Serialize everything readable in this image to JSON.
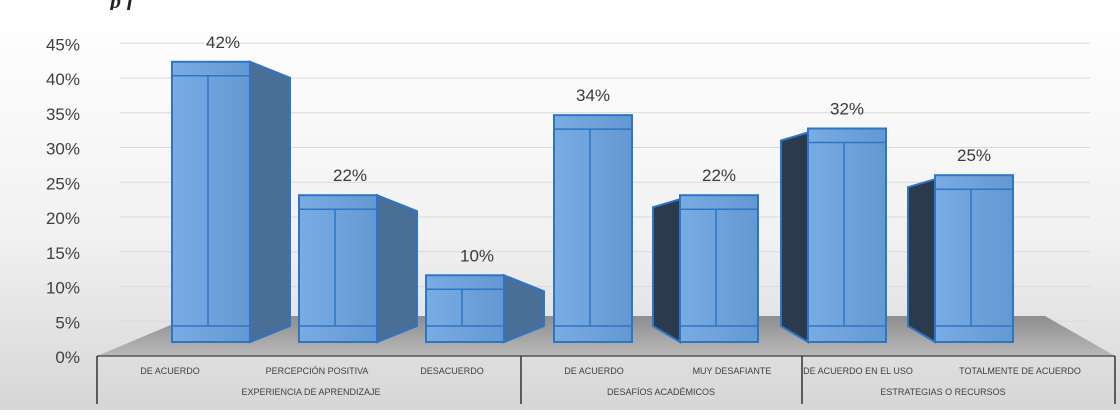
{
  "header": {
    "fragment": "p       f"
  },
  "chart_data": {
    "type": "bar",
    "title": "",
    "xlabel": "",
    "ylabel": "",
    "ylim": [
      0,
      45
    ],
    "y_ticks": [
      "0%",
      "5%",
      "10%",
      "15%",
      "20%",
      "25%",
      "30%",
      "35%",
      "40%",
      "45%"
    ],
    "grid": true,
    "legend": "none",
    "groups": [
      {
        "name": "EXPERIENCIA DE APRENDIZAJE",
        "bars": [
          {
            "category": "DE ACUERDO",
            "value": 42,
            "label": "42%"
          },
          {
            "category": "PERCEPCIÓN POSITIVA",
            "value": 22,
            "label": "22%"
          },
          {
            "category": "DESACUERDO",
            "value": 10,
            "label": "10%"
          }
        ]
      },
      {
        "name": "DESAFÍOS ACADÉMICOS",
        "bars": [
          {
            "category": "DE ACUERDO",
            "value": 34,
            "label": "34%"
          },
          {
            "category": "MUY DESAFIANTE",
            "value": 22,
            "label": "22%"
          }
        ]
      },
      {
        "name": "ESTRATEGIAS O RECURSOS",
        "bars": [
          {
            "category": "DE ACUERDO EN EL USO",
            "value": 32,
            "label": "32%"
          },
          {
            "category": "TOTALMENTE DE ACUERDO",
            "value": 25,
            "label": "25%"
          }
        ]
      }
    ],
    "colors": {
      "bar_front": "#6fa3dc",
      "bar_side": "#4a6f97",
      "bar_side_dark": "#2b3a4d",
      "bar_edge": "#2e75c6",
      "floor": "#9a9a9a",
      "grid": "#d9d9d9",
      "axis_text": "#404040"
    }
  }
}
